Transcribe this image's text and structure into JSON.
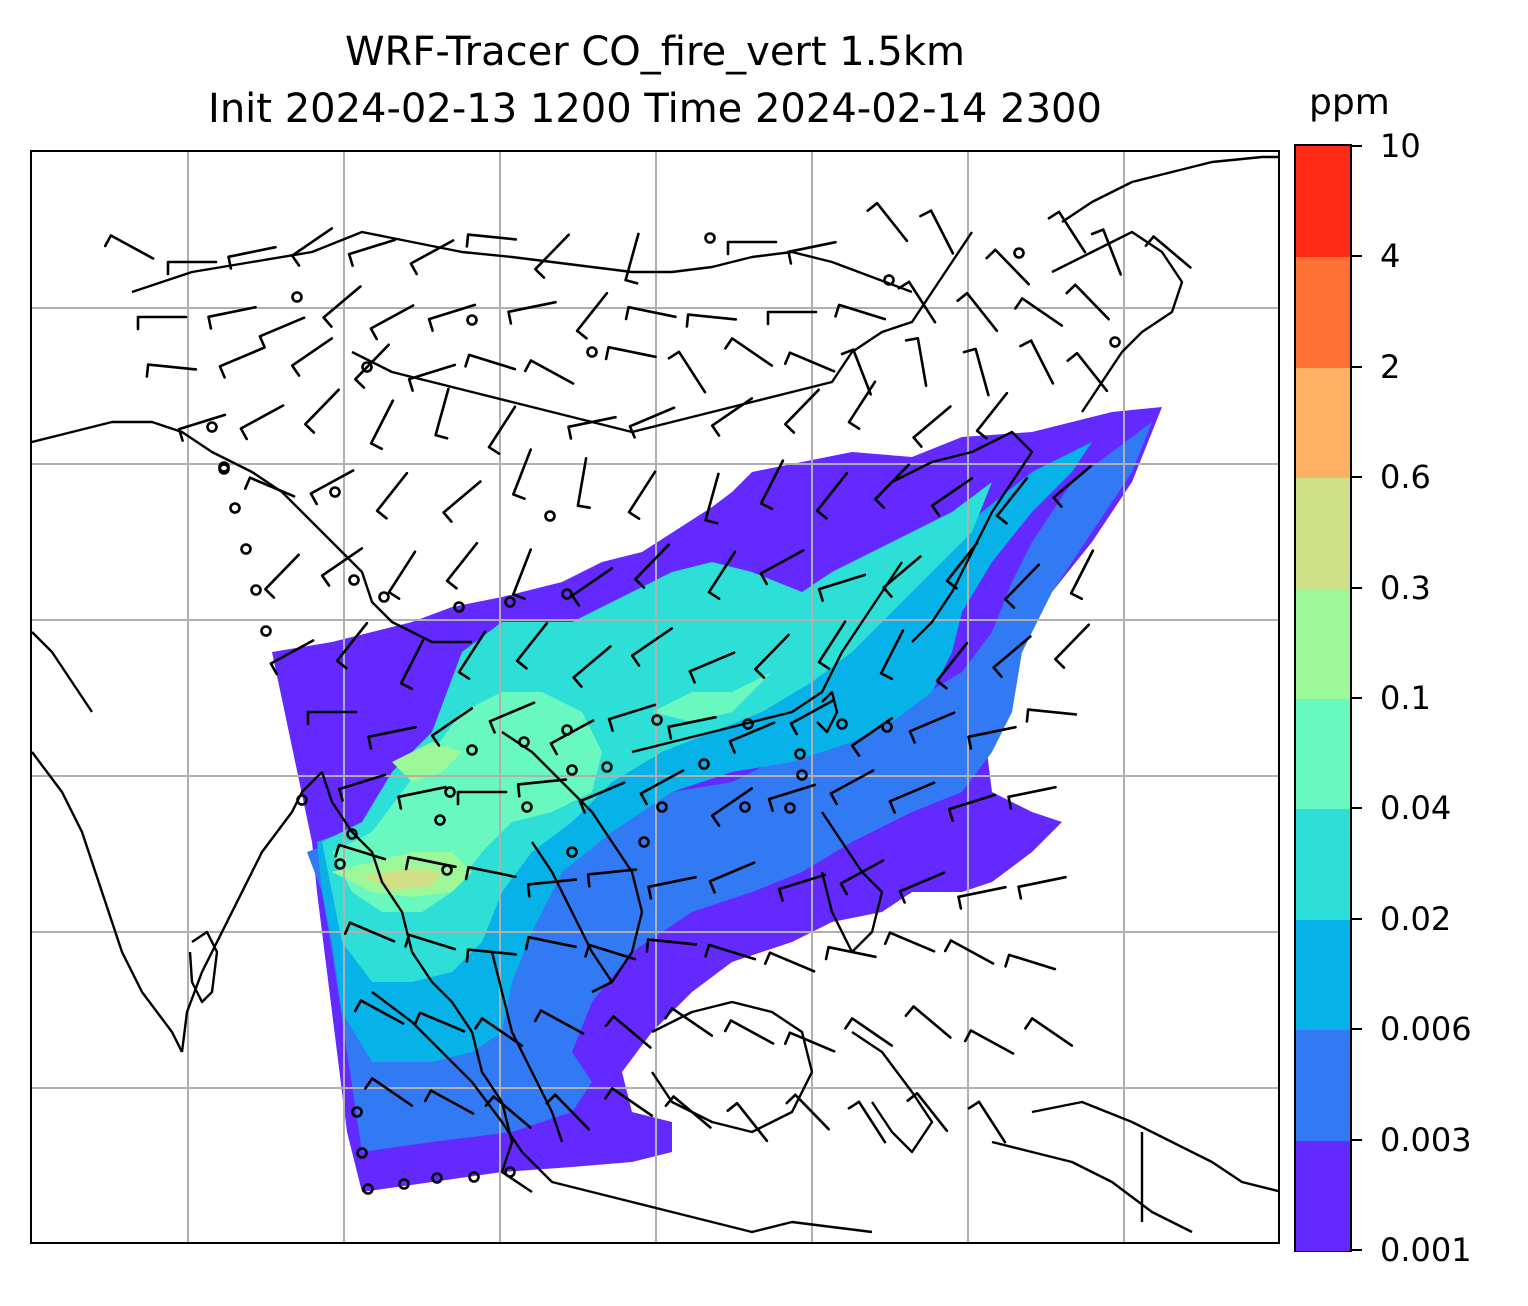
{
  "title": {
    "line1": "WRF-Tracer CO_fire_vert 1.5km",
    "line2": "Init 2024-02-13 1200 Time 2024-02-14 2300"
  },
  "colorbar": {
    "unit": "ppm",
    "labels": [
      "0.001",
      "0.003",
      "0.006",
      "0.02",
      "0.04",
      "0.1",
      "0.3",
      "0.6",
      "2",
      "4",
      "10"
    ],
    "colors": [
      "#6429ff",
      "#3279f4",
      "#07b2e8",
      "#2ddfd7",
      "#69f8c0",
      "#9cf898",
      "#cfe087",
      "#ffb163",
      "#ff7035",
      "#ff2b17"
    ]
  },
  "map": {
    "coastline_color": "#000000",
    "gridline_color": "#b0b0b0",
    "wind_barb_color": "#000000"
  }
}
